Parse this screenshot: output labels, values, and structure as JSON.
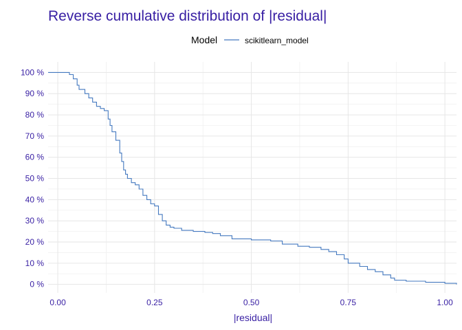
{
  "chart_data": {
    "type": "line",
    "step": true,
    "title": "Reverse cumulative distribution of |residual|",
    "xlabel": "|residual|",
    "ylabel": "",
    "legend": {
      "title": "Model",
      "position": "top",
      "entries": [
        "scikitlearn_model"
      ]
    },
    "xlim": [
      -0.025,
      1.03
    ],
    "ylim": [
      -0.04,
      1.05
    ],
    "grid": true,
    "x_ticks": [
      0.0,
      0.25,
      0.5,
      0.75,
      1.0
    ],
    "x_tick_labels": [
      "0.00",
      "0.25",
      "0.50",
      "0.75",
      "1.00"
    ],
    "y_ticks": [
      0,
      0.1,
      0.2,
      0.3,
      0.4,
      0.5,
      0.6,
      0.7,
      0.8,
      0.9,
      1.0
    ],
    "y_tick_labels": [
      "0 %",
      "10 %",
      "20 %",
      "30 %",
      "40 %",
      "50 %",
      "60 %",
      "70 %",
      "80 %",
      "90 %",
      "100 %"
    ],
    "series": [
      {
        "name": "scikitlearn_model",
        "color": "#4378bf",
        "x": [
          -0.025,
          0.0,
          0.02,
          0.03,
          0.04,
          0.05,
          0.055,
          0.06,
          0.07,
          0.08,
          0.09,
          0.1,
          0.11,
          0.12,
          0.13,
          0.135,
          0.14,
          0.15,
          0.16,
          0.165,
          0.17,
          0.175,
          0.18,
          0.19,
          0.2,
          0.21,
          0.22,
          0.23,
          0.24,
          0.25,
          0.26,
          0.27,
          0.28,
          0.29,
          0.3,
          0.32,
          0.35,
          0.38,
          0.4,
          0.42,
          0.45,
          0.5,
          0.55,
          0.58,
          0.62,
          0.65,
          0.68,
          0.7,
          0.72,
          0.74,
          0.75,
          0.78,
          0.8,
          0.82,
          0.84,
          0.86,
          0.87,
          0.9,
          0.95,
          1.0,
          1.03
        ],
        "y": [
          1.0,
          1.0,
          1.0,
          0.99,
          0.97,
          0.94,
          0.92,
          0.92,
          0.9,
          0.88,
          0.86,
          0.84,
          0.83,
          0.82,
          0.78,
          0.75,
          0.72,
          0.68,
          0.62,
          0.58,
          0.54,
          0.52,
          0.5,
          0.48,
          0.47,
          0.45,
          0.42,
          0.4,
          0.38,
          0.37,
          0.33,
          0.3,
          0.28,
          0.27,
          0.265,
          0.255,
          0.25,
          0.245,
          0.24,
          0.23,
          0.215,
          0.21,
          0.205,
          0.19,
          0.18,
          0.175,
          0.165,
          0.155,
          0.14,
          0.12,
          0.1,
          0.085,
          0.07,
          0.06,
          0.045,
          0.03,
          0.02,
          0.015,
          0.01,
          0.005,
          0.0
        ]
      }
    ]
  }
}
